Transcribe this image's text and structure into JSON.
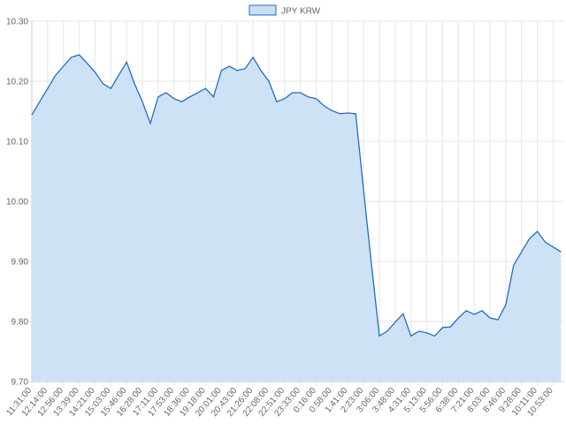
{
  "chart_data": {
    "type": "line",
    "categories": [
      "11:31:00",
      null,
      "12:14:00",
      null,
      "12:56:00",
      null,
      "13:39:00",
      null,
      "14:21:00",
      null,
      "15:03:00",
      null,
      "15:46:00",
      null,
      "16:28:00",
      null,
      "17:11:00",
      null,
      "17:53:00",
      null,
      "18:36:00",
      null,
      "19:18:00",
      null,
      "20:01:00",
      null,
      "20:43:00",
      null,
      "21:26:00",
      null,
      "22:08:00",
      null,
      "22:51:00",
      null,
      "23:33:00",
      null,
      "0:16:00",
      null,
      "0:58:00",
      null,
      "1:41:00",
      null,
      "2:23:00",
      null,
      "3:06:00",
      null,
      "3:48:00",
      null,
      "4:31:00",
      null,
      "5:13:00",
      null,
      "5:56:00",
      null,
      "6:38:00",
      null,
      "7:21:00",
      null,
      "8:03:00",
      null,
      "8:46:00",
      null,
      "9:28:00",
      null,
      "10:11:00",
      null,
      "10:53:00",
      null
    ],
    "series": [
      {
        "name": "JPY KRW",
        "color": "#1e6ec8",
        "fill": "#c9dff5",
        "values": [
          10.144,
          10.166,
          10.188,
          10.21,
          10.225,
          10.24,
          10.244,
          10.23,
          10.215,
          10.196,
          10.188,
          10.21,
          10.232,
          10.196,
          10.166,
          10.13,
          10.174,
          10.181,
          10.171,
          10.166,
          10.174,
          10.181,
          10.188,
          10.174,
          10.218,
          10.225,
          10.218,
          10.221,
          10.24,
          10.218,
          10.2,
          10.166,
          10.171,
          10.181,
          10.181,
          10.174,
          10.171,
          10.159,
          10.151,
          10.146,
          10.147,
          10.146,
          10.019,
          9.894,
          9.776,
          9.784,
          9.799,
          9.813,
          9.776,
          9.784,
          9.781,
          9.776,
          9.79,
          9.791,
          9.806,
          9.818,
          9.812,
          9.818,
          9.806,
          9.803,
          9.828,
          9.894,
          9.916,
          9.938,
          9.95,
          9.932,
          9.924,
          9.916
        ]
      }
    ],
    "ylim": [
      9.7,
      10.3
    ],
    "yticks": [
      {
        "value": 9.7,
        "label": "9.70"
      },
      {
        "value": 9.8,
        "label": "9.80"
      },
      {
        "value": 9.9,
        "label": "9.90"
      },
      {
        "value": 10.0,
        "label": "10.00"
      },
      {
        "value": 10.1,
        "label": "10.10"
      },
      {
        "value": 10.2,
        "label": "10.20"
      },
      {
        "value": 10.3,
        "label": "10.30"
      }
    ],
    "grid": true,
    "legend": "top"
  }
}
